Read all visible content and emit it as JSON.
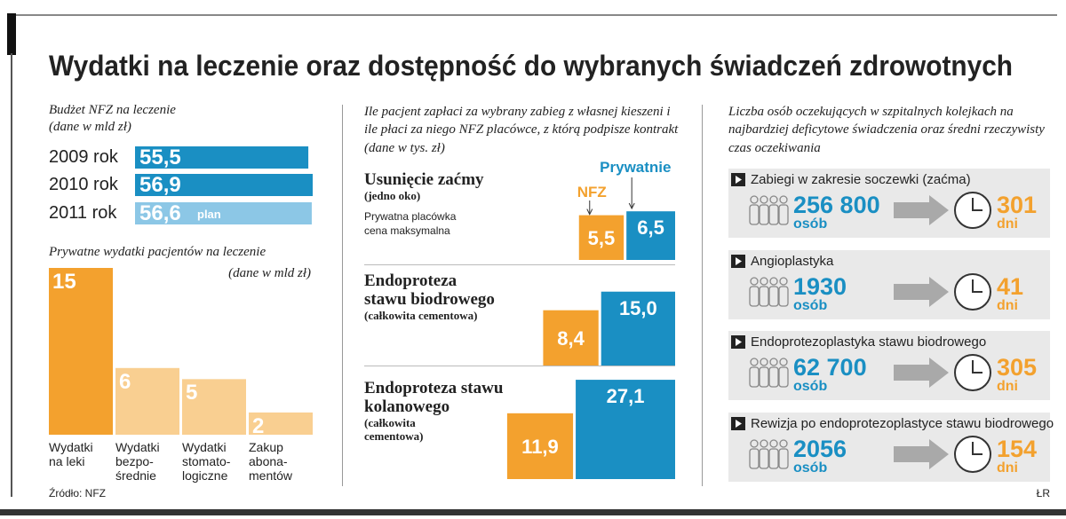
{
  "title": "Wydatki na leczenie oraz dostępność do wybranych świadczeń zdrowotnych",
  "source": "Źródło: NFZ",
  "author": "ŁR",
  "chart_data": [
    {
      "type": "hbar",
      "title": "Budżet NFZ na leczenie",
      "subtitle": "(dane w mld zł)",
      "categories": [
        "2009 rok",
        "2010 rok",
        "2011 rok"
      ],
      "values": [
        55.5,
        56.9,
        56.6
      ],
      "value_labels": [
        "55,5",
        "56,9",
        "56,6"
      ],
      "colors": [
        "#1a8fc3",
        "#1a8fc3",
        "#8cc7e6"
      ],
      "annotation": "plan"
    },
    {
      "type": "bar",
      "title": "Prywatne wydatki  pacjentów na leczenie",
      "subtitle": "(dane w mld zł)",
      "categories": [
        "Wydatki\nna leki",
        "Wydatki\nbezpo-\nśrednie",
        "Wydatki\nstomato-\nlogiczne",
        "Zakup\nabona-\nmentów"
      ],
      "values": [
        15,
        6,
        5,
        2
      ],
      "colors": [
        "#f3a12e",
        "#f9cf91",
        "#f9cf91",
        "#f9cf91"
      ]
    },
    {
      "type": "square",
      "title": "Ile pacjent zapłaci za wybrany zabieg z własnej kieszeni i ile  płaci za niego NFZ placówce, z którą podpisze kontrakt (dane w tys. zł)",
      "categories": [
        "Usunięcie zaćmy",
        "Endoproteza\nstawu biodrowego",
        "Endoproteza stawu\nkolanowego"
      ],
      "category_notes": [
        "(jedno oko)",
        "(całkowita cementowa)",
        "(całkowita\ncementowa)"
      ],
      "annotation": "Prywatna placówka\ncena maksymalna",
      "series": [
        {
          "name": "NFZ",
          "color": "#f3a12e",
          "values": [
            5.5,
            8.4,
            11.9
          ],
          "value_labels": [
            "5,5",
            "8,4",
            "11,9"
          ]
        },
        {
          "name": "Prywatnie",
          "color": "#1a8fc3",
          "values": [
            6.5,
            15.0,
            27.1
          ],
          "value_labels": [
            "6,5",
            "15,0",
            "27,1"
          ]
        }
      ]
    },
    {
      "type": "table",
      "title": "Liczba osób oczekujących w szpitalnych kolejkach na najbardziej deficytowe świadczenia oraz średni rzeczywisty czas oczekiwania",
      "people_unit": "osób",
      "days_unit": "dni",
      "items": [
        {
          "name": "Zabiegi w zakresie soczewki (zaćma)",
          "people": 256800,
          "people_label": "256 800",
          "days": 301
        },
        {
          "name": "Angioplastyka",
          "people": 1930,
          "days": 41
        },
        {
          "name": "Endoprotezoplastyka stawu biodrowego",
          "people": 62700,
          "people_label": "62 700",
          "days": 305
        },
        {
          "name": "Rewizja po endoprotezoplastyce stawu biodrowego",
          "people": 2056,
          "days": 154
        }
      ]
    }
  ]
}
